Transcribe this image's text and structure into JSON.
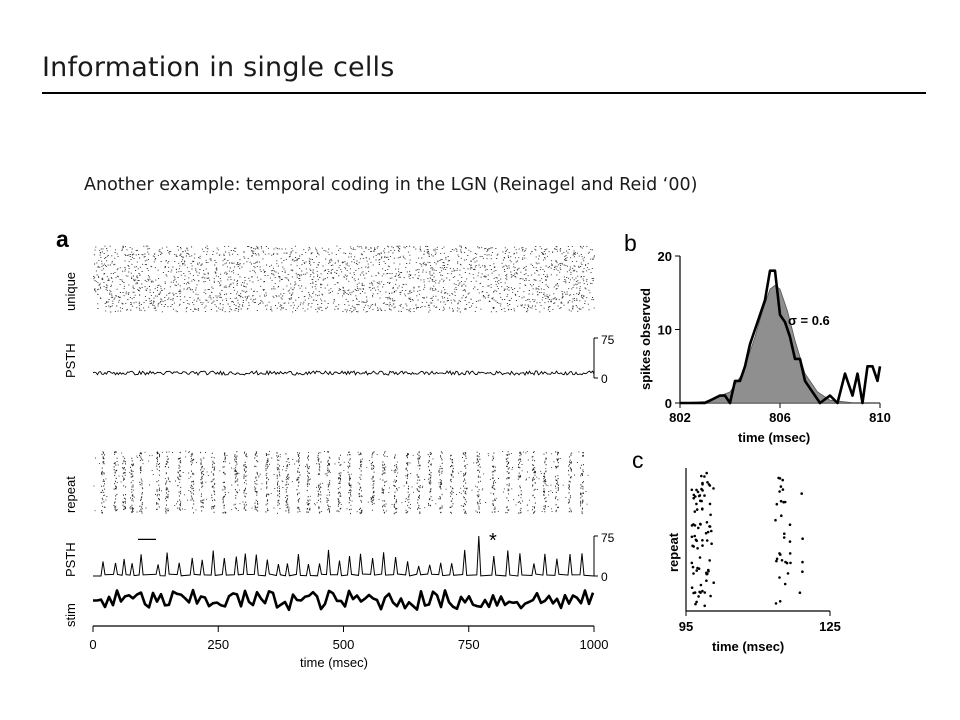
{
  "slide": {
    "title": "Information in single cells",
    "subtitle": "Another example: temporal coding in the LGN (Reinagel and Reid ‘00)"
  },
  "figure": {
    "panel_a": {
      "letter": "a",
      "row_labels": [
        "unique",
        "PSTH",
        "repeat",
        "PSTH",
        "stim"
      ],
      "psth_tick_top": "75",
      "psth_tick_bottom": "0",
      "star": "*",
      "scale_bar": "—"
    },
    "panel_b": {
      "letter": "b",
      "sigma_label": "σ = 0.6"
    },
    "panel_c": {
      "letter": "c"
    }
  },
  "chart_data": [
    {
      "type": "line",
      "panel": "a",
      "xlabel": "time (msec)",
      "xlim": [
        0,
        1000
      ],
      "x_ticks": [
        0,
        250,
        500,
        750,
        1000
      ],
      "rows": [
        "unique raster",
        "unique PSTH",
        "repeat raster",
        "repeat PSTH",
        "stim"
      ],
      "psth_ylim": [
        0,
        75
      ],
      "psth_y_ticks": [
        0,
        75
      ],
      "repeat_event_times_ms": [
        20,
        45,
        62,
        78,
        96,
        130,
        148,
        172,
        198,
        218,
        240,
        262,
        286,
        304,
        326,
        348,
        370,
        388,
        410,
        430,
        452,
        470,
        492,
        512,
        534,
        558,
        580,
        604,
        628,
        650,
        672,
        694,
        716,
        742,
        770,
        800,
        828,
        852,
        880,
        902,
        926,
        952,
        976
      ]
    },
    {
      "type": "line",
      "panel": "b",
      "xlabel": "time (msec)",
      "ylabel": "spikes observed",
      "xlim": [
        802,
        810
      ],
      "ylim": [
        0,
        20
      ],
      "x_ticks": [
        802,
        806,
        810
      ],
      "y_ticks": [
        0,
        10,
        20
      ],
      "annotation": "σ = 0.6",
      "series": [
        {
          "name": "observed",
          "x": [
            802.0,
            803.0,
            803.6,
            803.8,
            804.0,
            804.2,
            804.4,
            804.6,
            804.8,
            805.0,
            805.2,
            805.4,
            805.6,
            805.8,
            806.0,
            806.2,
            806.4,
            806.6,
            806.8,
            807.0,
            807.2,
            807.4,
            807.6,
            808.0,
            808.3,
            808.6,
            808.9,
            809.1,
            809.3,
            809.5,
            809.7,
            809.9,
            810.0
          ],
          "y": [
            0,
            0,
            1,
            1,
            0,
            3,
            3,
            5,
            8,
            10,
            12,
            14,
            18,
            18,
            12,
            11,
            9,
            6,
            6,
            3,
            2,
            1,
            0,
            1,
            0,
            4,
            1,
            4,
            0,
            5,
            5,
            3,
            5
          ]
        },
        {
          "name": "gaussian",
          "x": [
            802,
            803,
            804,
            804.5,
            805,
            805.3,
            805.6,
            805.8,
            806.0,
            806.3,
            806.6,
            807,
            807.5,
            808,
            809,
            810
          ],
          "y": [
            0,
            0.2,
            1.5,
            4,
            9,
            12.5,
            15.5,
            16,
            15.5,
            12.5,
            8.5,
            4,
            1.5,
            0.4,
            0,
            0
          ]
        }
      ]
    },
    {
      "type": "scatter",
      "panel": "c",
      "xlabel": "time (msec)",
      "ylabel": "repeat",
      "xlim": [
        95,
        125
      ],
      "x_ticks": [
        95,
        125
      ],
      "clusters": [
        {
          "x_range": [
            96.2,
            100.8
          ],
          "count": 80
        },
        {
          "x_range": [
            113.5,
            116.8
          ],
          "count": 30
        },
        {
          "x_range": [
            118.5,
            119.5
          ],
          "count": 5
        }
      ]
    }
  ]
}
